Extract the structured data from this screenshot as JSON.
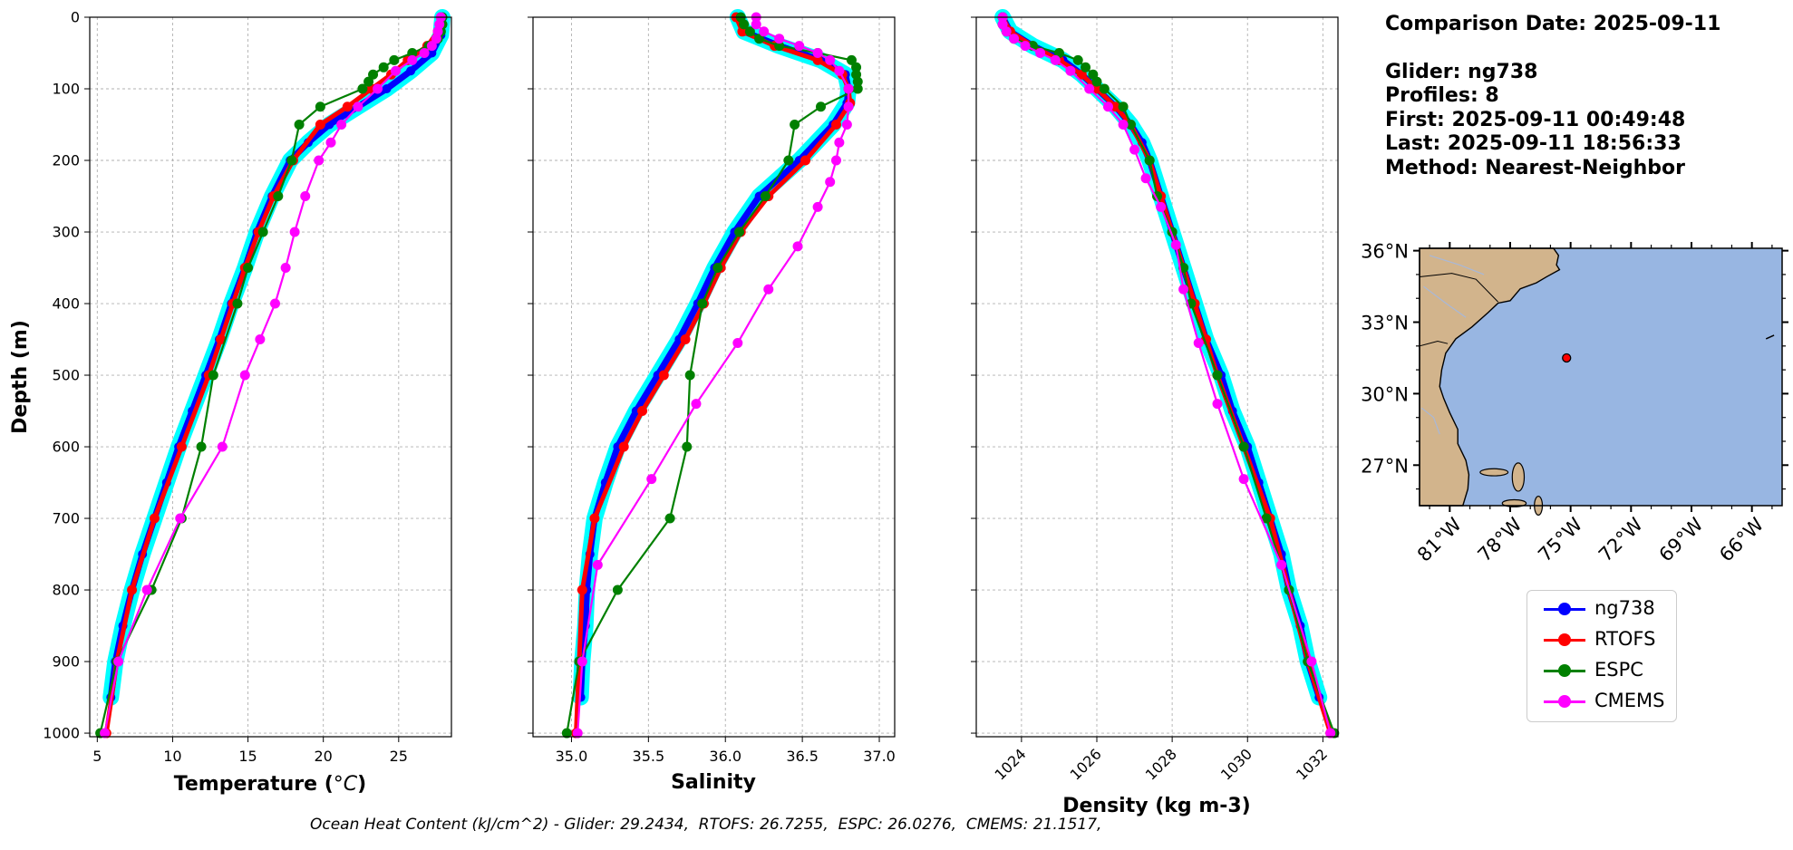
{
  "info": {
    "comparison_date": "Comparison Date: 2025-09-11",
    "glider": "Glider: ng738",
    "profiles": "Profiles: 8",
    "first": "First: 2025-09-11 00:49:48",
    "last": "Last: 2025-09-11 18:56:33",
    "method": "Method: Nearest-Neighbor"
  },
  "footer": {
    "ohc": "Ocean Heat Content (kJ/cm^2) - Glider: 29.2434,  RTOFS: 26.7255,  ESPC: 26.0276,  CMEMS: 21.1517,"
  },
  "colors": {
    "glider": "#0000ff",
    "glider_envelope": "#00ffff",
    "rtofs": "#ff0000",
    "espc": "#008000",
    "cmems": "#ff00ff",
    "land": "#d2b48c",
    "ocean": "#98b6e2",
    "grid": "#b0b0b0"
  },
  "legend": {
    "items": [
      {
        "label": "ng738",
        "color": "#0000ff"
      },
      {
        "label": "RTOFS",
        "color": "#ff0000"
      },
      {
        "label": "ESPC",
        "color": "#008000"
      },
      {
        "label": "CMEMS",
        "color": "#ff00ff"
      }
    ]
  },
  "map": {
    "lat_labels": [
      "36°N",
      "33°N",
      "30°N",
      "27°N"
    ],
    "lon_labels": [
      "81°W",
      "78°W",
      "75°W",
      "72°W",
      "69°W",
      "66°W"
    ],
    "lon_range": [
      -82.5,
      -64.5
    ],
    "lat_range": [
      25.3,
      36.1
    ],
    "glider_position": {
      "lon": -75.2,
      "lat": 31.5
    }
  },
  "chart_data": [
    {
      "type": "line",
      "xlabel": "Temperature (°C)",
      "ylabel": "Depth (m)",
      "xlim": [
        4.5,
        28.5
      ],
      "ylim": [
        1005,
        0
      ],
      "xticks": [
        5,
        10,
        15,
        20,
        25
      ],
      "yticks": [
        0,
        100,
        200,
        300,
        400,
        500,
        600,
        700,
        800,
        900,
        1000
      ],
      "grid": true,
      "series": [
        {
          "name": "ng738",
          "depth": [
            0,
            25,
            50,
            75,
            100,
            125,
            150,
            175,
            200,
            250,
            300,
            350,
            400,
            450,
            500,
            550,
            600,
            650,
            700,
            750,
            800,
            850,
            900,
            950
          ],
          "values": [
            27.9,
            27.8,
            27.2,
            25.8,
            24.2,
            22.3,
            20.4,
            19.0,
            17.8,
            16.6,
            15.6,
            14.8,
            13.9,
            13.1,
            12.2,
            11.3,
            10.4,
            9.6,
            8.8,
            8.0,
            7.3,
            6.7,
            6.2,
            5.9
          ]
        },
        {
          "name": "RTOFS",
          "depth": [
            0,
            20,
            40,
            60,
            80,
            100,
            125,
            150,
            200,
            250,
            300,
            350,
            400,
            450,
            500,
            600,
            700,
            800,
            900,
            1000
          ],
          "values": [
            27.8,
            27.6,
            26.9,
            25.6,
            24.5,
            23.2,
            21.6,
            19.8,
            18.0,
            16.7,
            15.7,
            14.8,
            14.0,
            13.2,
            12.4,
            10.6,
            8.8,
            7.3,
            6.3,
            5.6
          ]
        },
        {
          "name": "ESPC",
          "depth": [
            0,
            10,
            20,
            30,
            40,
            50,
            60,
            70,
            80,
            90,
            100,
            125,
            150,
            200,
            250,
            300,
            350,
            400,
            500,
            600,
            700,
            800,
            900,
            1000
          ],
          "values": [
            27.9,
            27.9,
            27.8,
            27.6,
            27.0,
            25.9,
            24.7,
            24.0,
            23.3,
            23.0,
            22.6,
            19.8,
            18.4,
            17.9,
            17.0,
            16.0,
            15.0,
            14.3,
            12.7,
            11.9,
            10.6,
            8.6,
            6.3,
            5.2
          ]
        },
        {
          "name": "CMEMS",
          "depth": [
            0,
            10,
            20,
            30,
            40,
            50,
            60,
            75,
            100,
            125,
            150,
            175,
            200,
            250,
            300,
            350,
            400,
            450,
            500,
            600,
            700,
            800,
            900,
            1000
          ],
          "values": [
            27.8,
            27.7,
            27.6,
            27.5,
            27.2,
            26.7,
            25.9,
            24.8,
            23.6,
            22.3,
            21.2,
            20.5,
            19.7,
            18.8,
            18.1,
            17.5,
            16.8,
            15.8,
            14.8,
            13.3,
            10.5,
            8.3,
            6.4,
            5.5
          ]
        }
      ]
    },
    {
      "type": "line",
      "xlabel": "Salinity",
      "xlim": [
        34.75,
        37.1
      ],
      "ylim": [
        1005,
        0
      ],
      "xticks": [
        35.0,
        35.5,
        36.0,
        36.5,
        37.0
      ],
      "grid": true,
      "series": [
        {
          "name": "ng738",
          "depth": [
            0,
            20,
            40,
            60,
            80,
            100,
            120,
            150,
            200,
            250,
            300,
            350,
            400,
            450,
            500,
            550,
            600,
            650,
            700,
            750,
            800,
            850,
            900,
            950
          ],
          "values": [
            36.08,
            36.12,
            36.35,
            36.62,
            36.78,
            36.8,
            36.79,
            36.7,
            36.48,
            36.22,
            36.06,
            35.93,
            35.82,
            35.7,
            35.56,
            35.42,
            35.3,
            35.22,
            35.15,
            35.12,
            35.1,
            35.09,
            35.07,
            35.06
          ]
        },
        {
          "name": "RTOFS",
          "depth": [
            0,
            20,
            40,
            60,
            80,
            100,
            120,
            150,
            200,
            250,
            300,
            350,
            400,
            450,
            500,
            550,
            600,
            700,
            800,
            900,
            1000
          ],
          "values": [
            36.07,
            36.11,
            36.32,
            36.6,
            36.76,
            36.8,
            36.81,
            36.72,
            36.52,
            36.28,
            36.1,
            35.97,
            35.86,
            35.74,
            35.6,
            35.46,
            35.34,
            35.15,
            35.07,
            35.05,
            35.03
          ]
        },
        {
          "name": "ESPC",
          "depth": [
            0,
            10,
            20,
            30,
            40,
            50,
            60,
            70,
            80,
            90,
            100,
            125,
            150,
            200,
            250,
            300,
            350,
            400,
            500,
            600,
            700,
            800,
            900,
            1000
          ],
          "values": [
            36.1,
            36.12,
            36.16,
            36.22,
            36.35,
            36.6,
            36.82,
            36.85,
            36.85,
            36.86,
            36.86,
            36.62,
            36.45,
            36.41,
            36.26,
            36.09,
            35.95,
            35.85,
            35.77,
            35.75,
            35.64,
            35.3,
            35.05,
            34.97
          ]
        },
        {
          "name": "CMEMS",
          "depth": [
            0,
            10,
            20,
            30,
            40,
            50,
            60,
            75,
            100,
            125,
            150,
            175,
            200,
            230,
            265,
            320,
            380,
            455,
            540,
            645,
            765,
            900,
            1000
          ],
          "values": [
            36.2,
            36.2,
            36.25,
            36.35,
            36.48,
            36.6,
            36.68,
            36.74,
            36.8,
            36.8,
            36.79,
            36.74,
            36.72,
            36.68,
            36.6,
            36.47,
            36.28,
            36.08,
            35.81,
            35.52,
            35.17,
            35.07,
            35.04
          ]
        }
      ]
    },
    {
      "type": "line",
      "xlabel": "Density (kg m-3)",
      "xlim": [
        1022.8,
        1032.4
      ],
      "ylim": [
        1005,
        0
      ],
      "xticks": [
        1024,
        1026,
        1028,
        1030,
        1032
      ],
      "grid": true,
      "series": [
        {
          "name": "ng738",
          "depth": [
            0,
            20,
            40,
            60,
            80,
            100,
            125,
            150,
            175,
            200,
            250,
            300,
            350,
            400,
            450,
            500,
            550,
            600,
            650,
            700,
            750,
            800,
            850,
            900,
            950
          ],
          "values": [
            1023.5,
            1023.7,
            1024.3,
            1025.1,
            1025.6,
            1026.0,
            1026.5,
            1026.9,
            1027.2,
            1027.4,
            1027.7,
            1028.0,
            1028.3,
            1028.6,
            1028.9,
            1029.3,
            1029.6,
            1030.0,
            1030.3,
            1030.6,
            1030.9,
            1031.1,
            1031.4,
            1031.6,
            1031.9
          ]
        },
        {
          "name": "RTOFS",
          "depth": [
            0,
            20,
            40,
            60,
            80,
            100,
            125,
            150,
            200,
            250,
            300,
            350,
            400,
            450,
            500,
            600,
            700,
            800,
            900,
            1000
          ],
          "values": [
            1023.5,
            1023.7,
            1024.3,
            1025.0,
            1025.6,
            1026.0,
            1026.5,
            1026.9,
            1027.4,
            1027.7,
            1028.0,
            1028.3,
            1028.6,
            1028.9,
            1029.2,
            1029.9,
            1030.6,
            1031.1,
            1031.6,
            1032.2
          ]
        },
        {
          "name": "ESPC",
          "depth": [
            0,
            10,
            20,
            30,
            40,
            50,
            60,
            70,
            80,
            90,
            100,
            125,
            150,
            200,
            250,
            300,
            350,
            400,
            500,
            600,
            700,
            800,
            900,
            1000
          ],
          "values": [
            1023.5,
            1023.5,
            1023.6,
            1023.8,
            1024.3,
            1025.0,
            1025.5,
            1025.7,
            1025.9,
            1026.0,
            1026.2,
            1026.7,
            1026.9,
            1027.4,
            1027.6,
            1028.0,
            1028.3,
            1028.5,
            1029.2,
            1029.9,
            1030.5,
            1031.1,
            1031.6,
            1032.3
          ]
        },
        {
          "name": "CMEMS",
          "depth": [
            0,
            10,
            20,
            30,
            40,
            50,
            60,
            75,
            100,
            125,
            150,
            185,
            225,
            265,
            318,
            380,
            455,
            540,
            645,
            765,
            900,
            1000
          ],
          "values": [
            1023.5,
            1023.5,
            1023.6,
            1023.8,
            1024.1,
            1024.5,
            1024.9,
            1025.3,
            1025.8,
            1026.3,
            1026.7,
            1027.0,
            1027.3,
            1027.7,
            1028.1,
            1028.3,
            1028.7,
            1029.2,
            1029.9,
            1030.9,
            1031.7,
            1032.2
          ]
        }
      ]
    }
  ]
}
